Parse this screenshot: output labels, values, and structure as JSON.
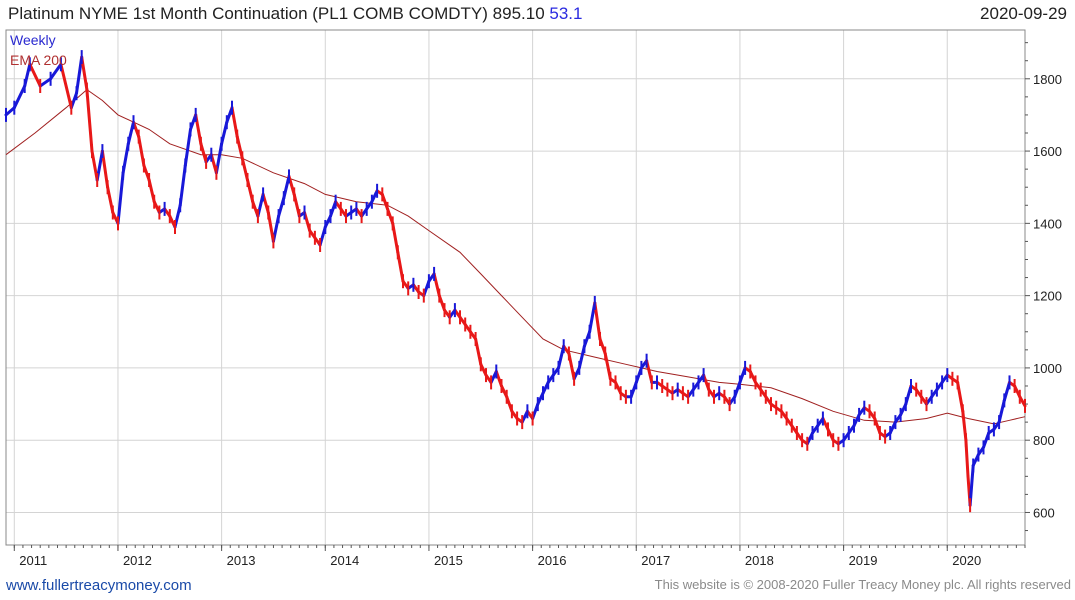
{
  "header": {
    "title": "Platinum NYME 1st Month Continuation (PL1 COMB COMDTY) 895.10",
    "last_change": "53.1",
    "date": "2020-09-29"
  },
  "legend": {
    "weekly": "Weekly",
    "ema": "EMA 200"
  },
  "footer": {
    "site": "www.fullertreacymoney.com",
    "copyright": "This website is © 2008-2020 Fuller Treacy Money plc. All rights reserved"
  },
  "colors": {
    "up": "#1818d8",
    "down": "#e81818",
    "ema": "#a02020",
    "grid": "#d4d4d4",
    "axis": "#555555"
  },
  "chart_data": {
    "type": "line",
    "series_name": "Platinum weekly close",
    "xlim": [
      2010.92,
      2020.75
    ],
    "ylim": [
      510,
      1935
    ],
    "y_ticks": [
      600,
      800,
      1000,
      1200,
      1400,
      1600,
      1800
    ],
    "x_ticks": [
      {
        "label": "2011",
        "t": 2011.0
      },
      {
        "label": "2012",
        "t": 2012.0
      },
      {
        "label": "2013",
        "t": 2013.0
      },
      {
        "label": "2014",
        "t": 2014.0
      },
      {
        "label": "2015",
        "t": 2015.0
      },
      {
        "label": "2016",
        "t": 2016.0
      },
      {
        "label": "2017",
        "t": 2017.0
      },
      {
        "label": "2018",
        "t": 2018.0
      },
      {
        "label": "2019",
        "t": 2019.0
      },
      {
        "label": "2020",
        "t": 2020.0
      }
    ],
    "price": [
      [
        2010.92,
        1700
      ],
      [
        2011.0,
        1720
      ],
      [
        2011.1,
        1780
      ],
      [
        2011.15,
        1840
      ],
      [
        2011.25,
        1780
      ],
      [
        2011.35,
        1800
      ],
      [
        2011.45,
        1840
      ],
      [
        2011.55,
        1720
      ],
      [
        2011.6,
        1760
      ],
      [
        2011.65,
        1860
      ],
      [
        2011.7,
        1770
      ],
      [
        2011.75,
        1600
      ],
      [
        2011.8,
        1520
      ],
      [
        2011.85,
        1600
      ],
      [
        2011.9,
        1500
      ],
      [
        2011.95,
        1430
      ],
      [
        2012.0,
        1400
      ],
      [
        2012.05,
        1540
      ],
      [
        2012.1,
        1620
      ],
      [
        2012.15,
        1680
      ],
      [
        2012.2,
        1640
      ],
      [
        2012.25,
        1560
      ],
      [
        2012.3,
        1520
      ],
      [
        2012.35,
        1460
      ],
      [
        2012.4,
        1430
      ],
      [
        2012.45,
        1440
      ],
      [
        2012.5,
        1420
      ],
      [
        2012.55,
        1390
      ],
      [
        2012.6,
        1450
      ],
      [
        2012.65,
        1560
      ],
      [
        2012.7,
        1660
      ],
      [
        2012.75,
        1700
      ],
      [
        2012.8,
        1620
      ],
      [
        2012.85,
        1570
      ],
      [
        2012.9,
        1590
      ],
      [
        2012.95,
        1540
      ],
      [
        2013.0,
        1620
      ],
      [
        2013.05,
        1680
      ],
      [
        2013.1,
        1720
      ],
      [
        2013.15,
        1640
      ],
      [
        2013.2,
        1580
      ],
      [
        2013.25,
        1520
      ],
      [
        2013.3,
        1460
      ],
      [
        2013.35,
        1420
      ],
      [
        2013.4,
        1480
      ],
      [
        2013.45,
        1430
      ],
      [
        2013.5,
        1350
      ],
      [
        2013.55,
        1420
      ],
      [
        2013.6,
        1470
      ],
      [
        2013.65,
        1530
      ],
      [
        2013.7,
        1480
      ],
      [
        2013.75,
        1420
      ],
      [
        2013.8,
        1430
      ],
      [
        2013.85,
        1380
      ],
      [
        2013.9,
        1360
      ],
      [
        2013.95,
        1340
      ],
      [
        2014.0,
        1390
      ],
      [
        2014.05,
        1420
      ],
      [
        2014.1,
        1460
      ],
      [
        2014.15,
        1440
      ],
      [
        2014.2,
        1420
      ],
      [
        2014.25,
        1430
      ],
      [
        2014.3,
        1440
      ],
      [
        2014.35,
        1420
      ],
      [
        2014.4,
        1440
      ],
      [
        2014.45,
        1460
      ],
      [
        2014.5,
        1490
      ],
      [
        2014.55,
        1480
      ],
      [
        2014.6,
        1440
      ],
      [
        2014.65,
        1400
      ],
      [
        2014.7,
        1320
      ],
      [
        2014.75,
        1240
      ],
      [
        2014.8,
        1220
      ],
      [
        2014.85,
        1230
      ],
      [
        2014.9,
        1210
      ],
      [
        2014.95,
        1200
      ],
      [
        2015.0,
        1240
      ],
      [
        2015.05,
        1260
      ],
      [
        2015.1,
        1200
      ],
      [
        2015.15,
        1160
      ],
      [
        2015.2,
        1140
      ],
      [
        2015.25,
        1160
      ],
      [
        2015.3,
        1140
      ],
      [
        2015.35,
        1120
      ],
      [
        2015.4,
        1100
      ],
      [
        2015.45,
        1080
      ],
      [
        2015.5,
        1010
      ],
      [
        2015.55,
        980
      ],
      [
        2015.6,
        960
      ],
      [
        2015.65,
        990
      ],
      [
        2015.7,
        950
      ],
      [
        2015.75,
        920
      ],
      [
        2015.8,
        880
      ],
      [
        2015.85,
        860
      ],
      [
        2015.9,
        850
      ],
      [
        2015.95,
        880
      ],
      [
        2016.0,
        860
      ],
      [
        2016.05,
        900
      ],
      [
        2016.1,
        930
      ],
      [
        2016.15,
        960
      ],
      [
        2016.2,
        980
      ],
      [
        2016.25,
        1000
      ],
      [
        2016.3,
        1060
      ],
      [
        2016.35,
        1040
      ],
      [
        2016.4,
        970
      ],
      [
        2016.45,
        1000
      ],
      [
        2016.5,
        1060
      ],
      [
        2016.55,
        1100
      ],
      [
        2016.6,
        1180
      ],
      [
        2016.65,
        1080
      ],
      [
        2016.7,
        1040
      ],
      [
        2016.75,
        970
      ],
      [
        2016.8,
        960
      ],
      [
        2016.85,
        930
      ],
      [
        2016.9,
        920
      ],
      [
        2016.95,
        920
      ],
      [
        2017.0,
        960
      ],
      [
        2017.05,
        1000
      ],
      [
        2017.1,
        1020
      ],
      [
        2017.15,
        960
      ],
      [
        2017.2,
        960
      ],
      [
        2017.25,
        950
      ],
      [
        2017.3,
        940
      ],
      [
        2017.35,
        930
      ],
      [
        2017.4,
        940
      ],
      [
        2017.45,
        930
      ],
      [
        2017.5,
        920
      ],
      [
        2017.55,
        940
      ],
      [
        2017.6,
        960
      ],
      [
        2017.65,
        980
      ],
      [
        2017.7,
        940
      ],
      [
        2017.75,
        920
      ],
      [
        2017.8,
        930
      ],
      [
        2017.85,
        920
      ],
      [
        2017.9,
        900
      ],
      [
        2017.95,
        920
      ],
      [
        2018.0,
        960
      ],
      [
        2018.05,
        1000
      ],
      [
        2018.1,
        990
      ],
      [
        2018.15,
        960
      ],
      [
        2018.2,
        940
      ],
      [
        2018.25,
        920
      ],
      [
        2018.3,
        900
      ],
      [
        2018.35,
        890
      ],
      [
        2018.4,
        880
      ],
      [
        2018.45,
        860
      ],
      [
        2018.5,
        840
      ],
      [
        2018.55,
        820
      ],
      [
        2018.6,
        800
      ],
      [
        2018.65,
        790
      ],
      [
        2018.7,
        820
      ],
      [
        2018.75,
        840
      ],
      [
        2018.8,
        860
      ],
      [
        2018.85,
        830
      ],
      [
        2018.9,
        800
      ],
      [
        2018.95,
        790
      ],
      [
        2019.0,
        800
      ],
      [
        2019.05,
        820
      ],
      [
        2019.1,
        840
      ],
      [
        2019.15,
        870
      ],
      [
        2019.2,
        890
      ],
      [
        2019.25,
        880
      ],
      [
        2019.3,
        860
      ],
      [
        2019.35,
        820
      ],
      [
        2019.4,
        810
      ],
      [
        2019.45,
        820
      ],
      [
        2019.5,
        850
      ],
      [
        2019.55,
        870
      ],
      [
        2019.6,
        900
      ],
      [
        2019.65,
        950
      ],
      [
        2019.7,
        940
      ],
      [
        2019.75,
        920
      ],
      [
        2019.8,
        900
      ],
      [
        2019.85,
        920
      ],
      [
        2019.9,
        940
      ],
      [
        2019.95,
        960
      ],
      [
        2020.0,
        980
      ],
      [
        2020.05,
        970
      ],
      [
        2020.1,
        960
      ],
      [
        2020.15,
        880
      ],
      [
        2020.18,
        800
      ],
      [
        2020.2,
        700
      ],
      [
        2020.22,
        620
      ],
      [
        2020.25,
        730
      ],
      [
        2020.3,
        760
      ],
      [
        2020.35,
        780
      ],
      [
        2020.4,
        820
      ],
      [
        2020.45,
        830
      ],
      [
        2020.5,
        850
      ],
      [
        2020.55,
        910
      ],
      [
        2020.6,
        960
      ],
      [
        2020.65,
        950
      ],
      [
        2020.7,
        920
      ],
      [
        2020.75,
        895
      ]
    ],
    "ema200": [
      [
        2010.92,
        1590
      ],
      [
        2011.2,
        1650
      ],
      [
        2011.5,
        1720
      ],
      [
        2011.7,
        1770
      ],
      [
        2011.85,
        1740
      ],
      [
        2012.0,
        1700
      ],
      [
        2012.3,
        1660
      ],
      [
        2012.5,
        1620
      ],
      [
        2012.8,
        1590
      ],
      [
        2013.0,
        1590
      ],
      [
        2013.2,
        1580
      ],
      [
        2013.5,
        1540
      ],
      [
        2013.8,
        1510
      ],
      [
        2014.0,
        1480
      ],
      [
        2014.3,
        1460
      ],
      [
        2014.6,
        1450
      ],
      [
        2014.8,
        1420
      ],
      [
        2015.0,
        1380
      ],
      [
        2015.3,
        1320
      ],
      [
        2015.5,
        1260
      ],
      [
        2015.7,
        1200
      ],
      [
        2015.9,
        1140
      ],
      [
        2016.1,
        1080
      ],
      [
        2016.3,
        1050
      ],
      [
        2016.6,
        1030
      ],
      [
        2016.9,
        1010
      ],
      [
        2017.2,
        990
      ],
      [
        2017.5,
        975
      ],
      [
        2017.8,
        960
      ],
      [
        2018.0,
        955
      ],
      [
        2018.3,
        945
      ],
      [
        2018.6,
        915
      ],
      [
        2018.9,
        880
      ],
      [
        2019.2,
        855
      ],
      [
        2019.5,
        850
      ],
      [
        2019.8,
        860
      ],
      [
        2020.0,
        875
      ],
      [
        2020.2,
        860
      ],
      [
        2020.45,
        845
      ],
      [
        2020.6,
        855
      ],
      [
        2020.75,
        865
      ]
    ]
  }
}
